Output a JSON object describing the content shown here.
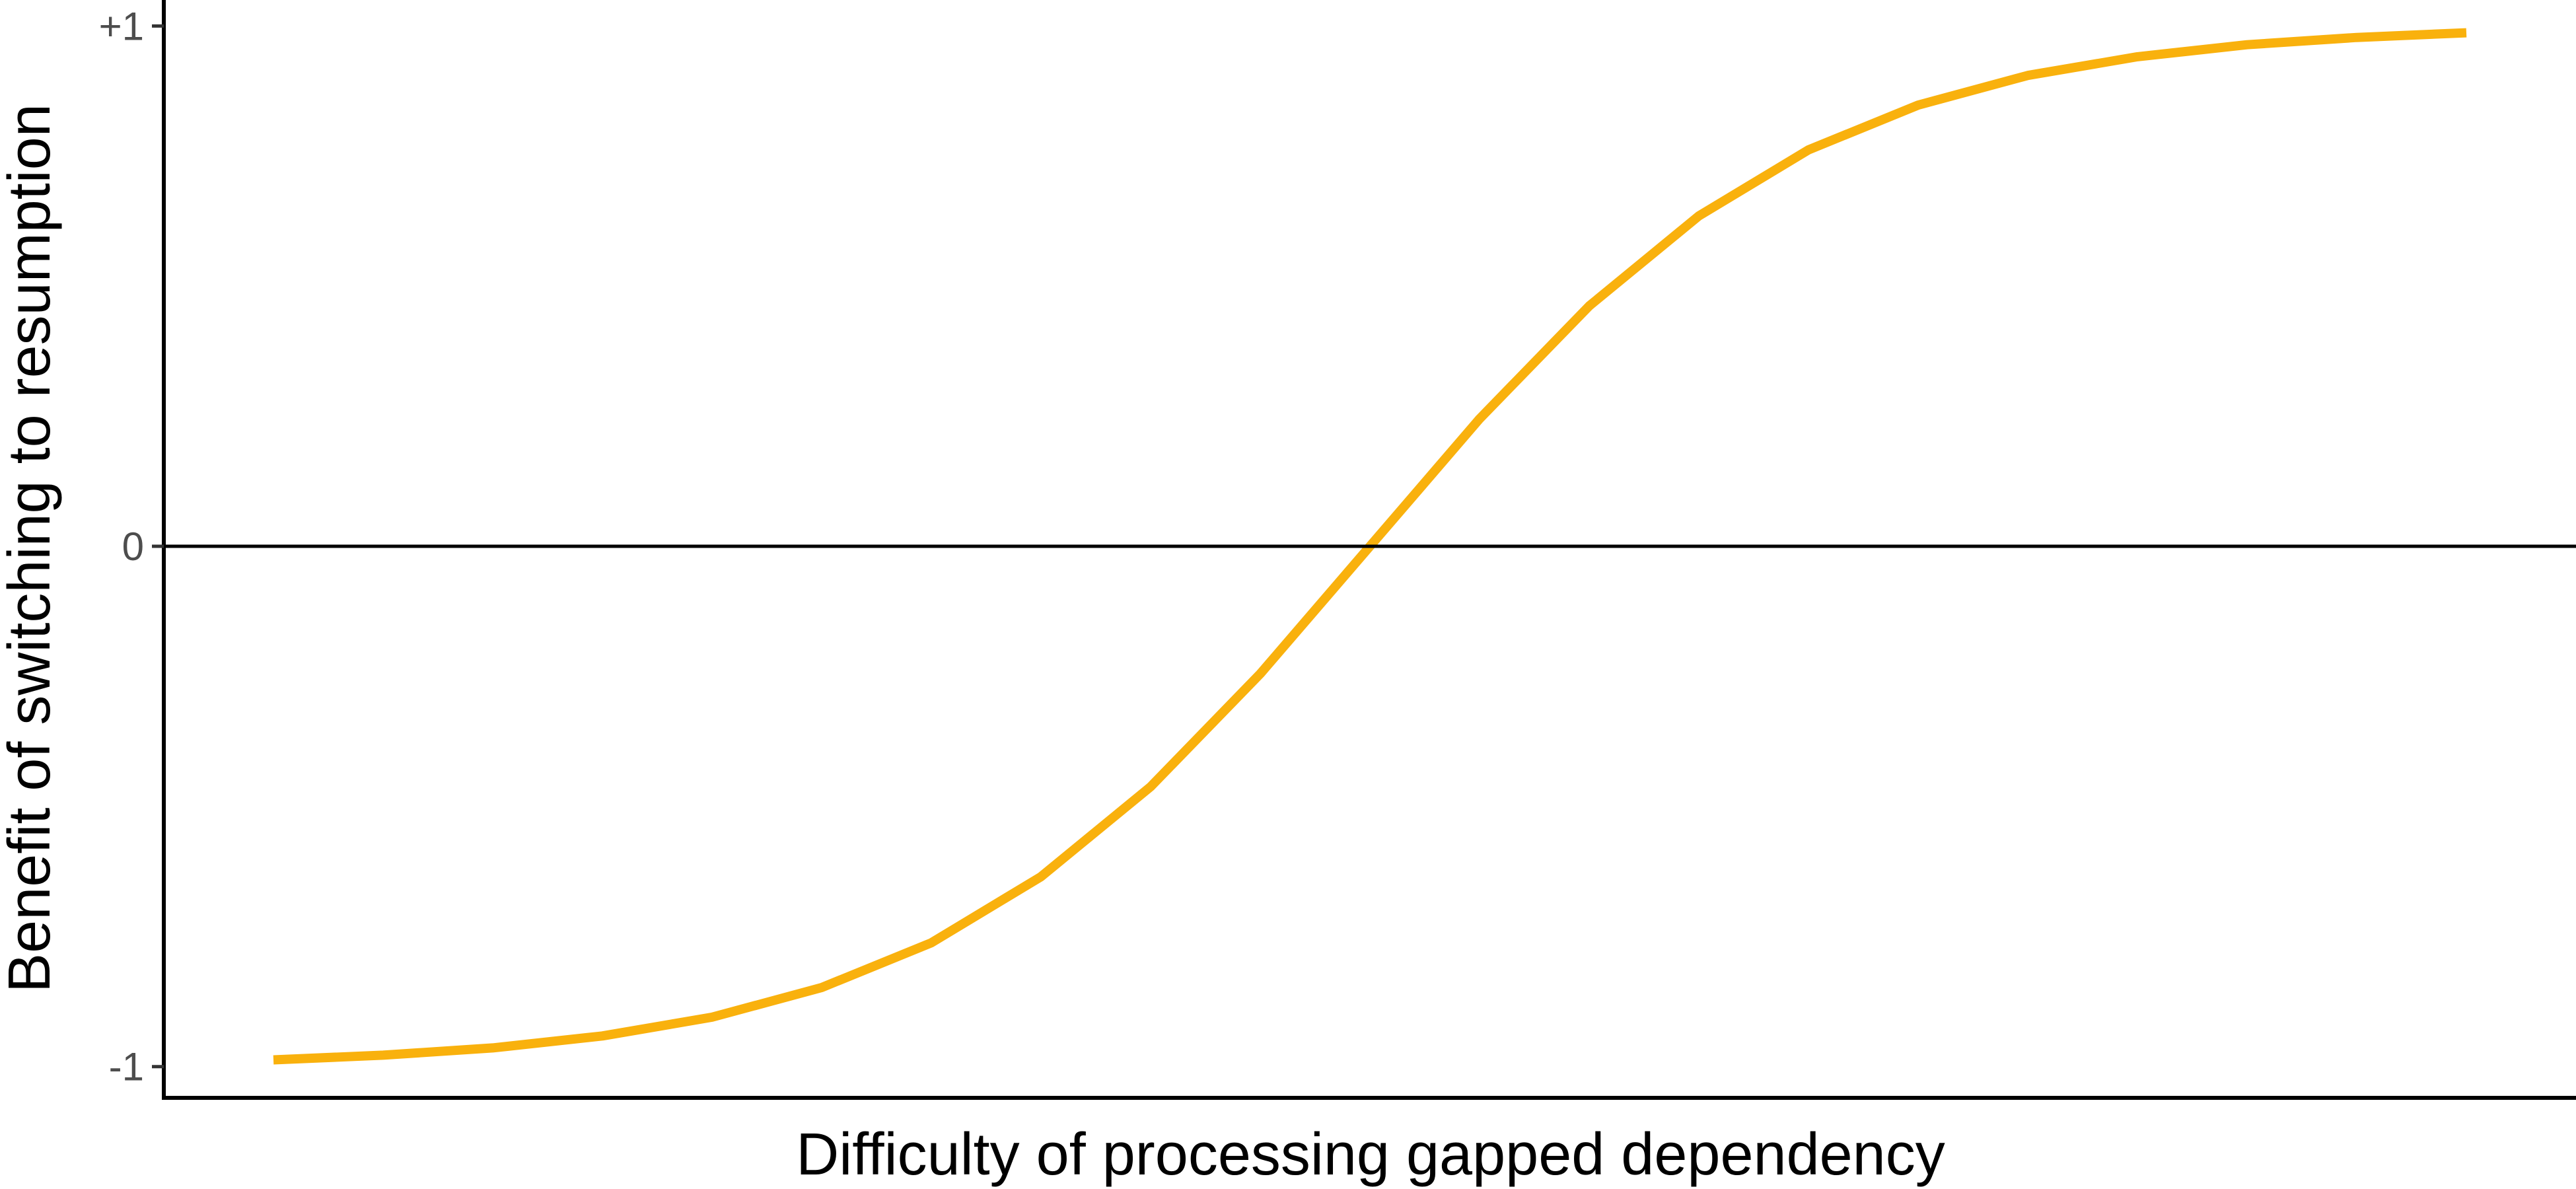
{
  "chart_data": {
    "type": "line",
    "title": "",
    "xlabel": "Difficulty of processing gapped dependency",
    "ylabel": "Benefit of switching to resumption",
    "ylim": [
      -1.06,
      1.05
    ],
    "xlim": [
      -5.5,
      5.5
    ],
    "grid": false,
    "y_ticks": [
      {
        "value": -1,
        "label": "-1"
      },
      {
        "value": 0,
        "label": "0"
      },
      {
        "value": 1,
        "label": "+1"
      }
    ],
    "reference_line_y": 0,
    "line_color": "#F9B10D",
    "series": [
      {
        "x": [
          -5.0,
          -4.5,
          -4.0,
          -3.5,
          -3.0,
          -2.5,
          -2.0,
          -1.5,
          -1.0,
          -0.5,
          0.0,
          0.5,
          1.0,
          1.5,
          2.0,
          2.5,
          3.0,
          3.5,
          4.0,
          4.5,
          5.0
        ],
        "values": [
          -0.987,
          -0.978,
          -0.964,
          -0.941,
          -0.905,
          -0.848,
          -0.762,
          -0.635,
          -0.462,
          -0.245,
          0.0,
          0.245,
          0.462,
          0.635,
          0.762,
          0.848,
          0.905,
          0.941,
          0.964,
          0.978,
          0.987
        ]
      }
    ]
  }
}
